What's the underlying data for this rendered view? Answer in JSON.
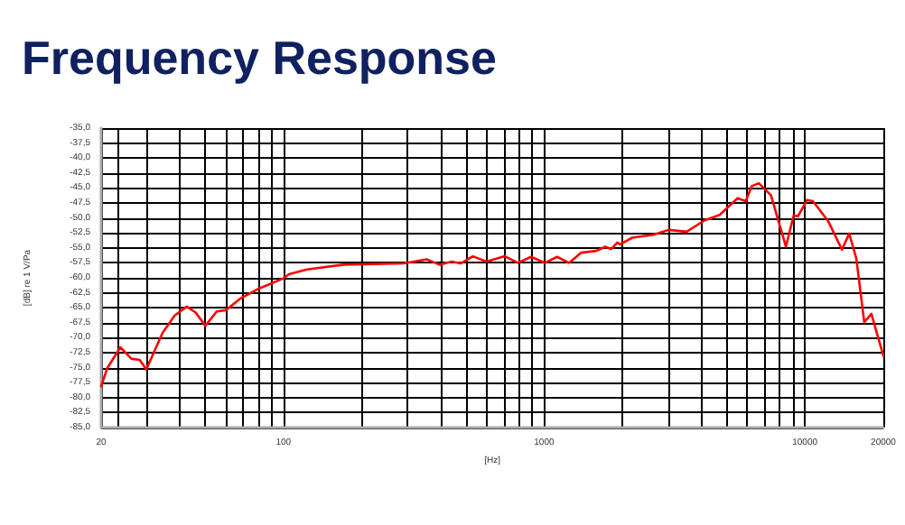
{
  "chart_data": {
    "type": "line",
    "title": "Frequency Response",
    "xlabel": "[Hz]",
    "ylabel": "[dB] re 1 V/Pa",
    "log": "x",
    "grid": true,
    "marker": "none",
    "line_style": "solid",
    "xlim": [
      20,
      20000
    ],
    "xticks": [
      20,
      {
        "value": 23,
        "label": null
      },
      {
        "value": 30,
        "label": null
      },
      {
        "value": 40,
        "label": null
      },
      {
        "value": 50,
        "label": null
      },
      {
        "value": 60,
        "label": null
      },
      {
        "value": 70,
        "label": null
      },
      {
        "value": 80,
        "label": null
      },
      {
        "value": 90,
        "label": null
      },
      100,
      {
        "value": 200,
        "label": null
      },
      {
        "value": 300,
        "label": null
      },
      {
        "value": 400,
        "label": null
      },
      {
        "value": 500,
        "label": null
      },
      {
        "value": 600,
        "label": null
      },
      {
        "value": 700,
        "label": null
      },
      {
        "value": 800,
        "label": null
      },
      {
        "value": 900,
        "label": null
      },
      1000,
      {
        "value": 2000,
        "label": null
      },
      {
        "value": 3000,
        "label": null
      },
      {
        "value": 4000,
        "label": null
      },
      {
        "value": 5000,
        "label": null
      },
      {
        "value": 6000,
        "label": null
      },
      {
        "value": 7000,
        "label": null
      },
      {
        "value": 8000,
        "label": null
      },
      {
        "value": 9000,
        "label": null
      },
      10000,
      20000
    ],
    "ylim": [
      -85,
      -35
    ],
    "yticks": [
      {
        "value": -85,
        "label": "-85,0"
      },
      {
        "value": -82.5,
        "label": "-82,5"
      },
      {
        "value": -80,
        "label": "-80,0"
      },
      {
        "value": -77.5,
        "label": "-77,5"
      },
      {
        "value": -75,
        "label": "-75,0"
      },
      {
        "value": -72.5,
        "label": "-72,5"
      },
      {
        "value": -70,
        "label": "-70,0"
      },
      {
        "value": -67.5,
        "label": "-67,5"
      },
      {
        "value": -65,
        "label": "-65,0"
      },
      {
        "value": -62.5,
        "label": "-62,5"
      },
      {
        "value": -60,
        "label": "-60,0"
      },
      {
        "value": -57.5,
        "label": "-57,5"
      },
      {
        "value": -55,
        "label": "-55,0"
      },
      {
        "value": -52.5,
        "label": "-52,5"
      },
      {
        "value": -50,
        "label": "-50,0"
      },
      {
        "value": -47.5,
        "label": "-47,5"
      },
      {
        "value": -45,
        "label": "-45,0"
      },
      {
        "value": -42.5,
        "label": "-42,5"
      },
      {
        "value": -40,
        "label": "-40,0"
      },
      {
        "value": -37.5,
        "label": "-37,5"
      },
      {
        "value": -35,
        "label": "-35,0"
      }
    ],
    "series": [
      {
        "color": "#ff0000",
        "x": [
          20,
          21.1,
          23.7,
          26.1,
          28.1,
          29.8,
          34.4,
          38.3,
          42.6,
          46.1,
          50.2,
          55.5,
          60.2,
          68.7,
          80.5,
          100,
          105,
          123,
          170,
          289,
          354,
          397,
          442,
          479,
          533,
          601,
          706,
          794,
          891,
          1008,
          1121,
          1247,
          1388,
          1585,
          1716,
          1808,
          1910,
          1958,
          2178,
          2628,
          3000,
          3520,
          4127,
          4710,
          5524,
          5930,
          6252,
          6660,
          7414,
          8460,
          9060,
          9420,
          10200,
          10740,
          12280,
          13880,
          14800,
          15760,
          16900,
          18000,
          20000
        ],
        "values": [
          -78.1,
          -75.1,
          -71.6,
          -73.5,
          -73.7,
          -75.3,
          -69.2,
          -66.3,
          -64.8,
          -65.8,
          -68.0,
          -65.6,
          -65.4,
          -63.4,
          -61.8,
          -60.1,
          -59.4,
          -58.6,
          -57.8,
          -57.6,
          -56.9,
          -57.8,
          -57.3,
          -57.6,
          -56.4,
          -57.3,
          -56.4,
          -57.5,
          -56.5,
          -57.5,
          -56.5,
          -57.5,
          -55.8,
          -55.5,
          -54.8,
          -55.2,
          -54.1,
          -54.4,
          -53.3,
          -52.8,
          -52.0,
          -52.3,
          -50.4,
          -49.5,
          -46.7,
          -47.2,
          -44.7,
          -44.2,
          -46.2,
          -54.8,
          -49.6,
          -49.7,
          -47.0,
          -47.2,
          -50.5,
          -55.3,
          -52.6,
          -56.8,
          -67.4,
          -66.0,
          -73.0
        ]
      }
    ]
  }
}
